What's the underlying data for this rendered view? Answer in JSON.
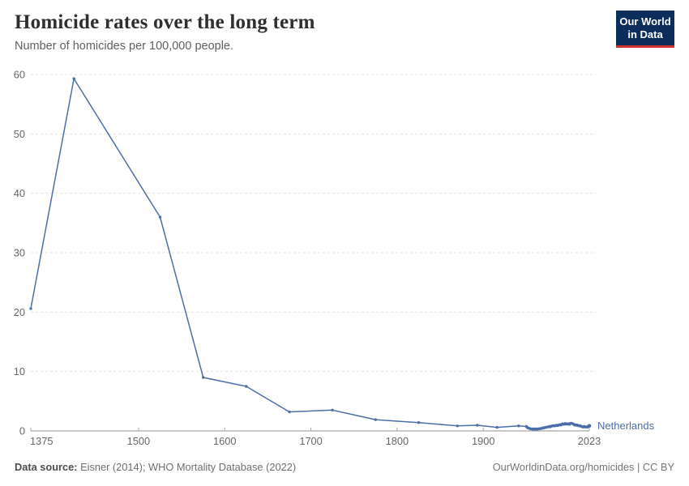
{
  "header": {
    "title": "Homicide rates over the long term",
    "subtitle": "Number of homicides per 100,000 people."
  },
  "logo": {
    "line1": "Our World",
    "line2": "in Data",
    "bg_color": "#0d2d5a",
    "accent_color": "#d0342c"
  },
  "chart_data": {
    "type": "line",
    "title": "Homicide rates over the long term",
    "subtitle": "Number of homicides per 100,000 people.",
    "xlabel": "",
    "ylabel": "Number of homicides per 100,000 people",
    "xlim": [
      1375,
      2023
    ],
    "ylim": [
      0,
      60
    ],
    "xticks": [
      1375,
      1500,
      1600,
      1700,
      1800,
      1900,
      2023
    ],
    "yticks": [
      0,
      10,
      20,
      30,
      40,
      50,
      60
    ],
    "grid": "horizontal-dashed",
    "legend_position": "end-of-line-label",
    "series": [
      {
        "name": "Netherlands",
        "color": "#4c6fa8",
        "points": [
          [
            1375,
            20.6
          ],
          [
            1425,
            59.3
          ],
          [
            1525,
            36.0
          ],
          [
            1575,
            9.0
          ],
          [
            1625,
            7.5
          ],
          [
            1675,
            3.2
          ],
          [
            1725,
            3.5
          ],
          [
            1775,
            1.9
          ],
          [
            1825,
            1.4
          ],
          [
            1870,
            0.85
          ],
          [
            1893,
            0.95
          ],
          [
            1916,
            0.6
          ],
          [
            1941,
            0.85
          ],
          [
            1950,
            0.75
          ],
          [
            1951,
            0.6
          ],
          [
            1952,
            0.5
          ],
          [
            1953,
            0.45
          ],
          [
            1954,
            0.4
          ],
          [
            1955,
            0.35
          ],
          [
            1956,
            0.35
          ],
          [
            1957,
            0.3
          ],
          [
            1958,
            0.3
          ],
          [
            1959,
            0.35
          ],
          [
            1960,
            0.3
          ],
          [
            1961,
            0.3
          ],
          [
            1962,
            0.35
          ],
          [
            1963,
            0.3
          ],
          [
            1964,
            0.35
          ],
          [
            1965,
            0.35
          ],
          [
            1966,
            0.4
          ],
          [
            1967,
            0.4
          ],
          [
            1968,
            0.45
          ],
          [
            1969,
            0.5
          ],
          [
            1970,
            0.5
          ],
          [
            1971,
            0.55
          ],
          [
            1972,
            0.6
          ],
          [
            1973,
            0.6
          ],
          [
            1974,
            0.65
          ],
          [
            1975,
            0.7
          ],
          [
            1976,
            0.7
          ],
          [
            1977,
            0.75
          ],
          [
            1978,
            0.7
          ],
          [
            1979,
            0.8
          ],
          [
            1980,
            0.85
          ],
          [
            1981,
            0.85
          ],
          [
            1982,
            0.9
          ],
          [
            1983,
            0.85
          ],
          [
            1984,
            0.9
          ],
          [
            1985,
            0.95
          ],
          [
            1986,
            0.9
          ],
          [
            1987,
            0.95
          ],
          [
            1988,
            1.0
          ],
          [
            1989,
            1.05
          ],
          [
            1990,
            1.0
          ],
          [
            1991,
            1.1
          ],
          [
            1992,
            1.2
          ],
          [
            1993,
            1.1
          ],
          [
            1994,
            1.15
          ],
          [
            1995,
            1.25
          ],
          [
            1996,
            1.15
          ],
          [
            1997,
            1.2
          ],
          [
            1998,
            1.15
          ],
          [
            1999,
            1.2
          ],
          [
            2000,
            1.1
          ],
          [
            2001,
            1.25
          ],
          [
            2002,
            1.3
          ],
          [
            2003,
            1.25
          ],
          [
            2004,
            1.2
          ],
          [
            2005,
            1.1
          ],
          [
            2006,
            1.0
          ],
          [
            2007,
            1.05
          ],
          [
            2008,
            0.95
          ],
          [
            2009,
            1.0
          ],
          [
            2010,
            0.9
          ],
          [
            2011,
            0.85
          ],
          [
            2012,
            0.9
          ],
          [
            2013,
            0.8
          ],
          [
            2014,
            0.75
          ],
          [
            2015,
            0.7
          ],
          [
            2016,
            0.65
          ],
          [
            2017,
            0.75
          ],
          [
            2018,
            0.7
          ],
          [
            2019,
            0.65
          ],
          [
            2020,
            0.7
          ],
          [
            2021,
            0.65
          ],
          [
            2022,
            0.8
          ],
          [
            2023,
            0.85
          ]
        ]
      }
    ]
  },
  "footer": {
    "source_label": "Data source:",
    "source_value": "Eisner (2014); WHO Mortality Database (2022)",
    "rights": "OurWorldinData.org/homicides | CC BY"
  }
}
